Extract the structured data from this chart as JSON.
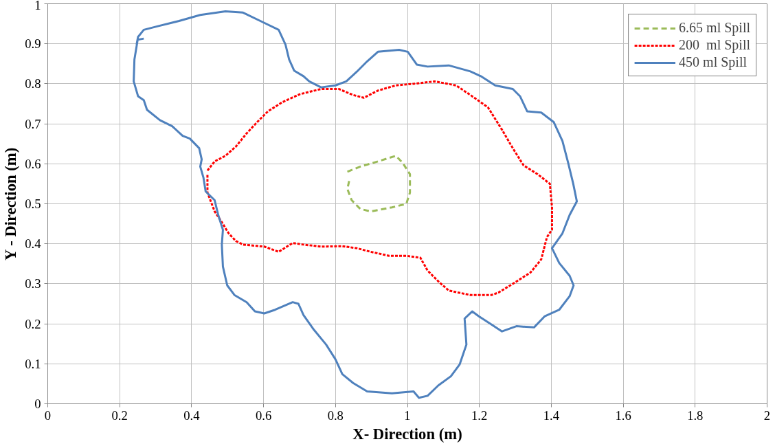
{
  "chart_data": {
    "type": "line",
    "xlabel": "X- Direction (m)",
    "ylabel": "Y - Direction (m)",
    "xlim": [
      0,
      2
    ],
    "ylim": [
      0,
      1
    ],
    "xticks": [
      0,
      0.2,
      0.4,
      0.6,
      0.8,
      1,
      1.2,
      1.4,
      1.6,
      1.8,
      2
    ],
    "yticks": [
      0,
      0.1,
      0.2,
      0.3,
      0.4,
      0.5,
      0.6,
      0.7,
      0.8,
      0.9,
      1
    ],
    "grid": true,
    "legend": "top right",
    "marker": "none",
    "series": [
      {
        "name": "6.65 ml Spill",
        "color": "#9bbb59",
        "line_style": "dashed",
        "x": [
          0.833,
          0.869,
          0.918,
          0.968,
          0.987,
          1.007,
          1.007,
          0.997,
          0.957,
          0.898,
          0.869,
          0.845,
          0.833,
          0.839
        ],
        "values": [
          0.58,
          0.593,
          0.606,
          0.62,
          0.602,
          0.574,
          0.528,
          0.5,
          0.491,
          0.481,
          0.487,
          0.509,
          0.537,
          0.561
        ]
      },
      {
        "name": "200  ml Spill",
        "color": "#ff0000",
        "line_style": "dotted",
        "x": [
          0.444,
          0.464,
          0.494,
          0.523,
          0.553,
          0.582,
          0.612,
          0.652,
          0.701,
          0.76,
          0.809,
          0.849,
          0.879,
          0.918,
          0.968,
          1.017,
          1.076,
          1.135,
          1.175,
          1.224,
          1.263,
          1.293,
          1.323,
          1.362,
          1.396,
          1.402,
          1.402,
          1.388,
          1.372,
          1.342,
          1.293,
          1.253,
          1.234,
          1.175,
          1.115,
          1.086,
          1.056,
          1.036,
          0.997,
          0.949,
          0.898,
          0.859,
          0.819,
          0.76,
          0.711,
          0.681,
          0.642,
          0.602,
          0.543,
          0.523,
          0.503,
          0.484,
          0.464,
          0.444,
          0.444
        ],
        "values": [
          0.583,
          0.606,
          0.62,
          0.643,
          0.676,
          0.704,
          0.731,
          0.754,
          0.774,
          0.787,
          0.787,
          0.772,
          0.765,
          0.783,
          0.796,
          0.8,
          0.806,
          0.796,
          0.772,
          0.741,
          0.685,
          0.639,
          0.596,
          0.574,
          0.55,
          0.491,
          0.435,
          0.417,
          0.361,
          0.328,
          0.3,
          0.278,
          0.272,
          0.272,
          0.283,
          0.306,
          0.333,
          0.365,
          0.37,
          0.37,
          0.38,
          0.389,
          0.394,
          0.393,
          0.398,
          0.402,
          0.38,
          0.393,
          0.398,
          0.407,
          0.426,
          0.454,
          0.481,
          0.528,
          0.574
        ]
      },
      {
        "name": "450 ml Spill",
        "color": "#4f81bd",
        "line_style": "solid",
        "x": [
          0.267,
          0.25,
          0.241,
          0.239,
          0.251,
          0.267,
          0.276,
          0.312,
          0.346,
          0.375,
          0.395,
          0.421,
          0.428,
          0.424,
          0.433,
          0.439,
          0.464,
          0.474,
          0.487,
          0.484,
          0.487,
          0.499,
          0.519,
          0.553,
          0.576,
          0.602,
          0.632,
          0.681,
          0.697,
          0.711,
          0.74,
          0.774,
          0.8,
          0.819,
          0.849,
          0.888,
          0.957,
          1.017,
          1.032,
          1.056,
          1.086,
          1.121,
          1.145,
          1.164,
          1.159,
          1.18,
          1.198,
          1.234,
          1.263,
          1.303,
          1.352,
          1.382,
          1.422,
          1.451,
          1.462,
          1.451,
          1.422,
          1.402,
          1.431,
          1.451,
          1.471,
          1.461,
          1.447,
          1.431,
          1.407,
          1.372,
          1.333,
          1.313,
          1.293,
          1.244,
          1.204,
          1.175,
          1.115,
          1.056,
          1.026,
          1.001,
          0.977,
          0.918,
          0.888,
          0.859,
          0.83,
          0.8,
          0.76,
          0.727,
          0.711,
          0.685,
          0.671,
          0.661,
          0.642,
          0.598,
          0.543,
          0.494,
          0.424,
          0.365,
          0.306,
          0.267,
          0.251,
          0.247
        ],
        "values": [
          0.913,
          0.91,
          0.861,
          0.806,
          0.769,
          0.759,
          0.735,
          0.709,
          0.694,
          0.67,
          0.663,
          0.639,
          0.611,
          0.593,
          0.565,
          0.531,
          0.509,
          0.472,
          0.435,
          0.398,
          0.343,
          0.296,
          0.272,
          0.254,
          0.231,
          0.226,
          0.235,
          0.254,
          0.25,
          0.222,
          0.185,
          0.148,
          0.111,
          0.074,
          0.052,
          0.031,
          0.026,
          0.031,
          0.015,
          0.02,
          0.046,
          0.069,
          0.098,
          0.148,
          0.213,
          0.231,
          0.219,
          0.198,
          0.181,
          0.194,
          0.191,
          0.219,
          0.235,
          0.269,
          0.296,
          0.32,
          0.352,
          0.389,
          0.426,
          0.472,
          0.506,
          0.55,
          0.602,
          0.657,
          0.704,
          0.728,
          0.731,
          0.769,
          0.787,
          0.796,
          0.819,
          0.831,
          0.846,
          0.843,
          0.848,
          0.88,
          0.885,
          0.88,
          0.856,
          0.83,
          0.806,
          0.796,
          0.791,
          0.806,
          0.819,
          0.833,
          0.861,
          0.898,
          0.935,
          0.954,
          0.978,
          0.981,
          0.972,
          0.957,
          0.944,
          0.935,
          0.917,
          0.898
        ]
      }
    ]
  }
}
